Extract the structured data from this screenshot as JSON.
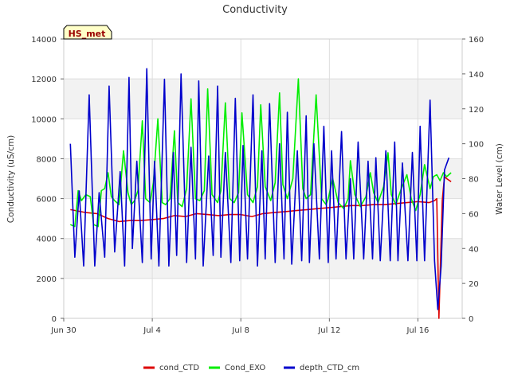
{
  "chart_data": {
    "type": "line",
    "title": "Conductivity",
    "badge": "HS_met",
    "ylabel_left": "Conductivity (uS/cm)",
    "ylabel_right": "Water Level (cm)",
    "x_ticks": [
      {
        "day": 0,
        "label": "Jun 30"
      },
      {
        "day": 4,
        "label": "Jul 4"
      },
      {
        "day": 8,
        "label": "Jul 8"
      },
      {
        "day": 12,
        "label": "Jul 12"
      },
      {
        "day": 16,
        "label": "Jul 16"
      }
    ],
    "xlim": [
      0,
      18
    ],
    "ylim_left": [
      0,
      14000
    ],
    "ylim_right": [
      0,
      160
    ],
    "y_ticks_left": [
      0,
      2000,
      4000,
      6000,
      8000,
      10000,
      12000,
      14000
    ],
    "y_ticks_right": [
      0,
      20,
      40,
      60,
      80,
      100,
      120,
      140,
      160
    ],
    "grid": true,
    "legend_position": "bottom-center",
    "series": [
      {
        "name": "cond_CTD",
        "color": "#dd0000",
        "axis": "left",
        "x": [
          0.3,
          1.0,
          1.5,
          2.0,
          2.5,
          3.0,
          3.5,
          4.0,
          4.5,
          5.0,
          5.5,
          6.0,
          6.5,
          7.0,
          7.5,
          8.0,
          8.5,
          9.0,
          9.5,
          10.0,
          10.5,
          11.0,
          11.5,
          12.0,
          12.5,
          13.0,
          13.5,
          14.0,
          14.5,
          15.0,
          15.5,
          16.0,
          16.5,
          16.75,
          16.85,
          16.95,
          17.1,
          17.2,
          17.3,
          17.5
        ],
        "y": [
          5450,
          5300,
          5250,
          5000,
          4850,
          4900,
          4900,
          4950,
          5000,
          5150,
          5100,
          5250,
          5200,
          5150,
          5200,
          5200,
          5100,
          5250,
          5300,
          5350,
          5400,
          5450,
          5500,
          5550,
          5600,
          5650,
          5650,
          5700,
          5700,
          5750,
          5800,
          5850,
          5800,
          5900,
          6000,
          0,
          5900,
          7100,
          7000,
          6850
        ]
      },
      {
        "name": "Cond_EXO",
        "color": "#00ee00",
        "axis": "left",
        "x": [
          0.3,
          0.5,
          0.65,
          0.8,
          1.0,
          1.2,
          1.35,
          1.55,
          1.7,
          1.85,
          2.0,
          2.15,
          2.3,
          2.5,
          2.7,
          2.9,
          3.05,
          3.2,
          3.35,
          3.55,
          3.7,
          3.9,
          4.05,
          4.25,
          4.45,
          4.6,
          4.8,
          5.0,
          5.15,
          5.35,
          5.55,
          5.75,
          5.95,
          6.15,
          6.35,
          6.5,
          6.7,
          6.95,
          7.1,
          7.3,
          7.5,
          7.7,
          7.9,
          8.05,
          8.3,
          8.55,
          8.75,
          8.9,
          9.1,
          9.35,
          9.55,
          9.75,
          9.9,
          10.1,
          10.35,
          10.6,
          10.8,
          10.95,
          11.15,
          11.4,
          11.65,
          11.85,
          11.95,
          12.15,
          12.4,
          12.65,
          12.85,
          12.95,
          13.15,
          13.4,
          13.65,
          13.85,
          14.0,
          14.2,
          14.45,
          14.65,
          14.8,
          15.0,
          15.25,
          15.5,
          15.7,
          15.9,
          16.1,
          16.3,
          16.55,
          16.7,
          16.85,
          17.0,
          17.15,
          17.3,
          17.5
        ],
        "y": [
          4700,
          4600,
          6400,
          5900,
          6200,
          6100,
          4700,
          4600,
          6400,
          6500,
          7300,
          6100,
          5900,
          5700,
          8400,
          6300,
          5700,
          5900,
          6400,
          9900,
          6000,
          5800,
          6800,
          10000,
          5800,
          5700,
          6000,
          9400,
          5800,
          5600,
          6500,
          11000,
          6000,
          5900,
          6400,
          11500,
          6200,
          5800,
          6400,
          10800,
          6000,
          5800,
          6300,
          10300,
          6200,
          5800,
          6600,
          10700,
          6600,
          5900,
          6800,
          11300,
          6700,
          6000,
          7000,
          12000,
          6500,
          6000,
          6200,
          11200,
          6000,
          5700,
          6000,
          7000,
          5800,
          5500,
          6000,
          7900,
          6200,
          5600,
          6100,
          7300,
          6300,
          5800,
          6600,
          8300,
          6200,
          5700,
          6500,
          7200,
          6000,
          5400,
          6200,
          7700,
          6500,
          7100,
          7200,
          6900,
          7300,
          7100,
          7300
        ]
      },
      {
        "name": "depth_CTD_cm",
        "color": "#0000cc",
        "axis": "right",
        "x": [
          0.3,
          0.5,
          0.7,
          0.9,
          1.15,
          1.4,
          1.6,
          1.85,
          2.05,
          2.3,
          2.55,
          2.75,
          2.95,
          3.1,
          3.3,
          3.55,
          3.75,
          3.95,
          4.1,
          4.3,
          4.55,
          4.75,
          4.95,
          5.1,
          5.3,
          5.55,
          5.75,
          5.95,
          6.1,
          6.3,
          6.55,
          6.75,
          6.95,
          7.1,
          7.3,
          7.55,
          7.75,
          7.95,
          8.1,
          8.3,
          8.55,
          8.75,
          8.95,
          9.1,
          9.3,
          9.55,
          9.75,
          9.95,
          10.1,
          10.3,
          10.55,
          10.75,
          10.95,
          11.1,
          11.3,
          11.55,
          11.75,
          11.95,
          12.1,
          12.3,
          12.55,
          12.75,
          12.95,
          13.1,
          13.3,
          13.55,
          13.75,
          13.95,
          14.1,
          14.3,
          14.55,
          14.75,
          14.95,
          15.1,
          15.3,
          15.55,
          15.75,
          15.95,
          16.1,
          16.3,
          16.55,
          16.75,
          16.9,
          17.05,
          17.2,
          17.4
        ],
        "y": [
          100,
          35,
          73,
          30,
          128,
          30,
          72,
          35,
          133,
          38,
          84,
          30,
          138,
          40,
          90,
          32,
          143,
          34,
          90,
          30,
          137,
          30,
          95,
          36,
          140,
          32,
          98,
          34,
          136,
          30,
          93,
          36,
          133,
          35,
          95,
          32,
          126,
          33,
          99,
          34,
          128,
          30,
          96,
          34,
          123,
          32,
          100,
          34,
          118,
          31,
          96,
          33,
          116,
          32,
          100,
          34,
          110,
          32,
          96,
          34,
          107,
          34,
          80,
          34,
          101,
          34,
          90,
          34,
          92,
          33,
          96,
          33,
          101,
          33,
          89,
          33,
          95,
          33,
          110,
          33,
          125,
          33,
          5,
          30,
          85,
          92
        ]
      }
    ]
  }
}
